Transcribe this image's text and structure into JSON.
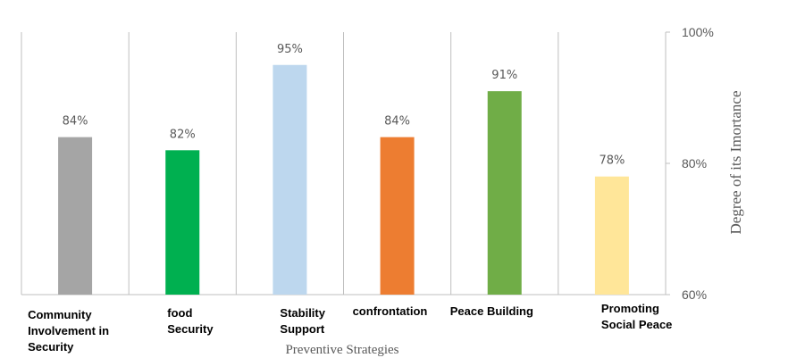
{
  "chart_data": {
    "type": "bar",
    "categories": [
      [
        "Community",
        "Involvement in",
        "Security"
      ],
      [
        "food",
        "Security"
      ],
      [
        "Stability",
        "Support"
      ],
      [
        "confrontation"
      ],
      [
        "Peace Building"
      ],
      [
        "Promoting",
        "Social Peace"
      ]
    ],
    "values": [
      84,
      82,
      95,
      84,
      91,
      78
    ],
    "value_labels": [
      "84%",
      "82%",
      "95%",
      "84%",
      "91%",
      "78%"
    ],
    "colors": [
      "#a5a5a5",
      "#00b050",
      "#bdd7ee",
      "#ed7d31",
      "#70ad47",
      "#ffe699"
    ],
    "ylim": [
      60,
      100
    ],
    "yticks": [
      {
        "value": 100,
        "label": "100%"
      },
      {
        "value": 80,
        "label": "80%"
      },
      {
        "value": 60,
        "label": "60%"
      }
    ],
    "ylabel": "Degree of its Imortance",
    "xlabel": "Preventive  Strategies",
    "axis_side": "right",
    "grid": "vertical category separators"
  }
}
